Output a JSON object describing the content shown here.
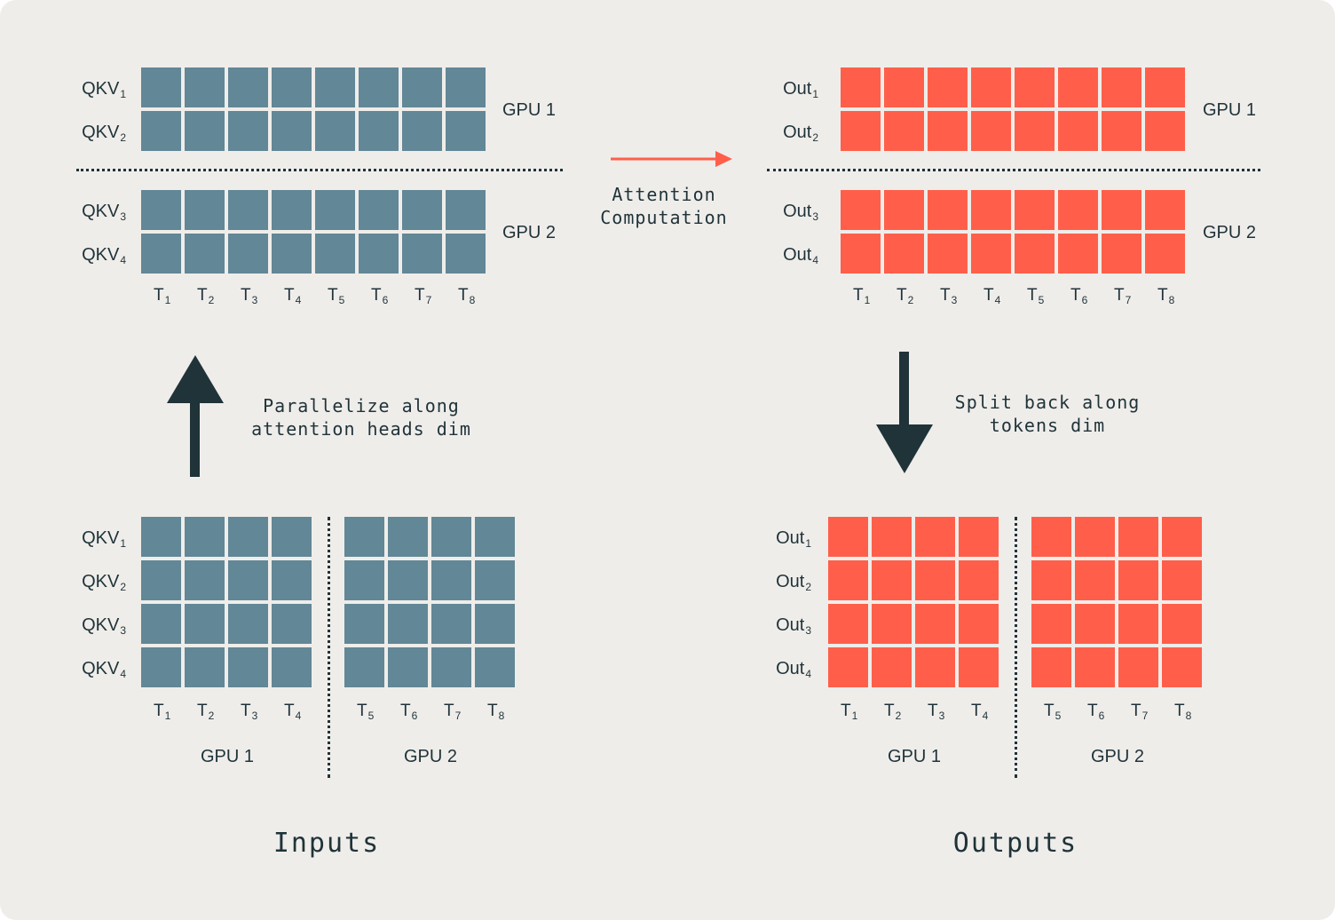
{
  "colors": {
    "background": "#efedea",
    "input_cell": "#628796",
    "output_cell": "#ff5f4a",
    "text": "#1f3339",
    "arrow_dark": "#1f3339",
    "arrow_accent": "#ff5f4a"
  },
  "labels": {
    "qkv1": "QKV",
    "qkv2": "QKV",
    "qkv3": "QKV",
    "qkv4": "QKV",
    "out1": "Out",
    "out2": "Out",
    "out3": "Out",
    "out4": "Out",
    "sub1": "1",
    "sub2": "2",
    "sub3": "3",
    "sub4": "4",
    "token": "T",
    "tok_subs": [
      "1",
      "2",
      "3",
      "4",
      "5",
      "6",
      "7",
      "8"
    ],
    "gpu1": "GPU 1",
    "gpu2": "GPU 2"
  },
  "captions": {
    "attention": "Attention\nComputation",
    "parallelize": "Parallelize along\nattention heads dim",
    "split": "Split back along\ntokens dim"
  },
  "titles": {
    "inputs": "Inputs",
    "outputs": "Outputs"
  }
}
